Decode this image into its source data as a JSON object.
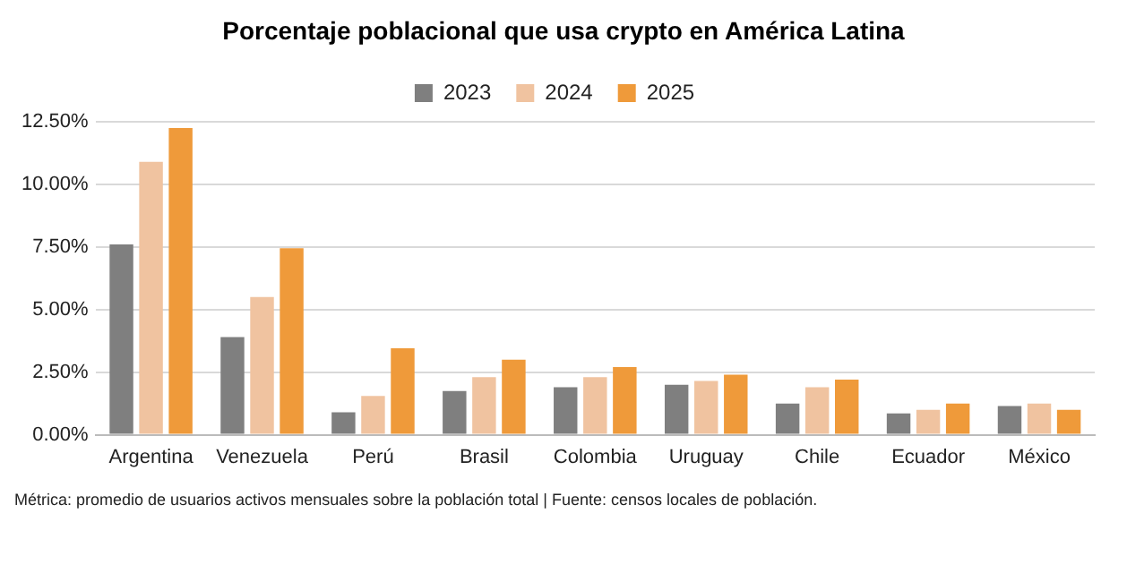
{
  "chart_data": {
    "type": "bar",
    "title": "Porcentaje poblacional que usa crypto en América Latina",
    "categories": [
      "Argentina",
      "Venezuela",
      "Perú",
      "Brasil",
      "Colombia",
      "Uruguay",
      "Chile",
      "Ecuador",
      "México"
    ],
    "series": [
      {
        "name": "2023",
        "color": "#7f7f7f",
        "values": [
          7.6,
          3.9,
          0.9,
          1.75,
          1.9,
          2.0,
          1.25,
          0.85,
          1.15
        ]
      },
      {
        "name": "2024",
        "color": "#f0c3a0",
        "values": [
          10.9,
          5.5,
          1.55,
          2.3,
          2.3,
          2.15,
          1.9,
          1.0,
          1.25
        ]
      },
      {
        "name": "2025",
        "color": "#ef9a3a",
        "values": [
          12.25,
          7.45,
          3.45,
          3.0,
          2.7,
          2.4,
          2.2,
          1.25,
          1.0
        ]
      }
    ],
    "ylim": [
      0,
      12.5
    ],
    "yticks": [
      {
        "value": 0,
        "label": "0.00%"
      },
      {
        "value": 2.5,
        "label": "2.50%"
      },
      {
        "value": 5,
        "label": "5.00%"
      },
      {
        "value": 7.5,
        "label": "7.50%"
      },
      {
        "value": 10,
        "label": "10.00%"
      },
      {
        "value": 12.5,
        "label": "12.50%"
      }
    ],
    "grid": "y",
    "legend": "top",
    "annotations": [
      "Métrica: promedio de usuarios activos mensuales sobre la población total | Fuente: censos locales de población."
    ]
  }
}
